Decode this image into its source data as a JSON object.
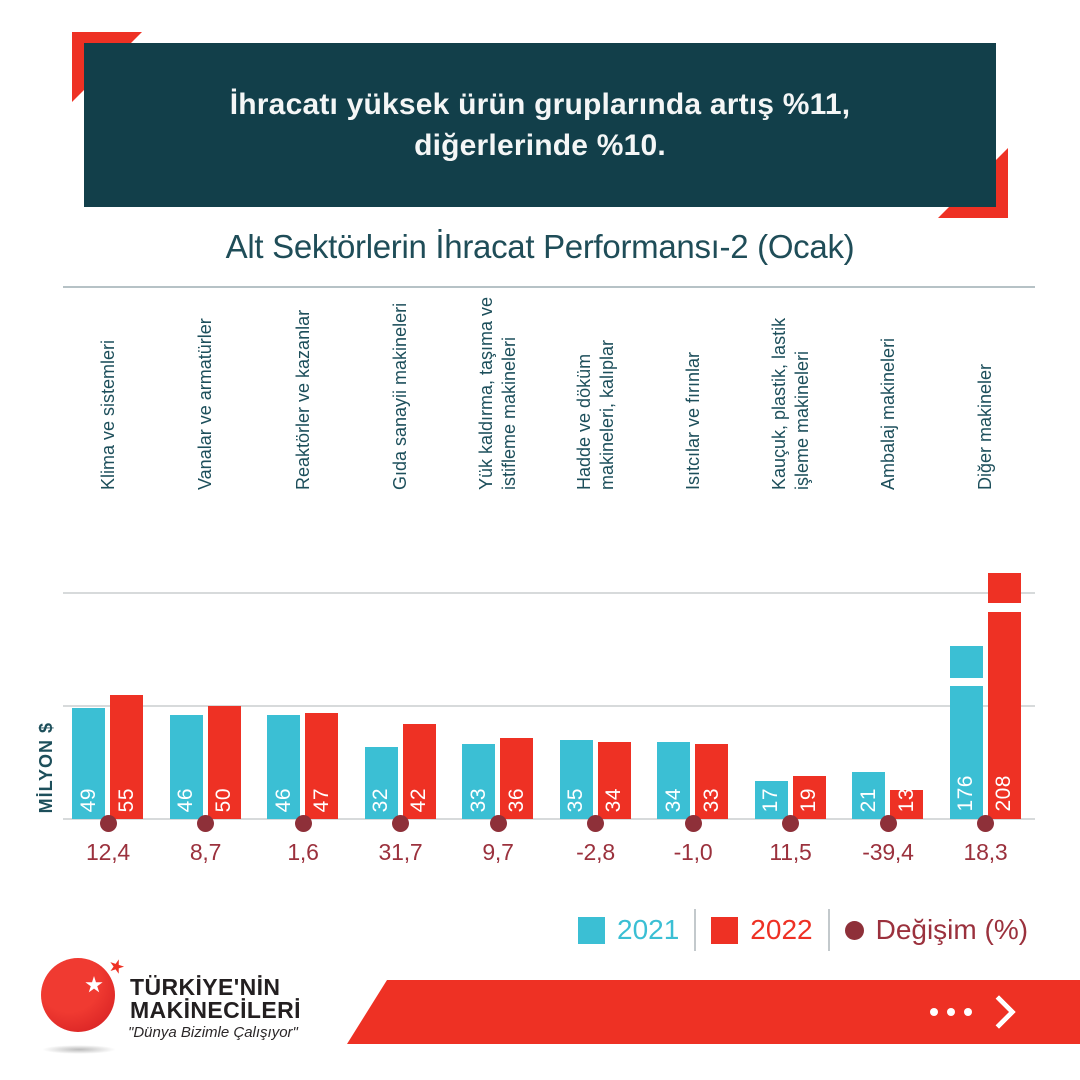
{
  "banner": {
    "line1": "İhracatı yüksek ürün gruplarında artış %11,",
    "line2": "diğerlerinde %10."
  },
  "title": "Alt Sektörlerin İhracat Performansı-2 (Ocak)",
  "chart_data": {
    "type": "bar",
    "title": "Alt Sektörlerin İhracat Performansı-2 (Ocak)",
    "ylabel": "MİLYON $",
    "categories": [
      "Klima ve sistemleri",
      "Vanalar ve armatürler",
      "Reaktörler ve kazanlar",
      "Gıda sanayii makineleri",
      "Yük kaldırma, taşıma ve\nistifleme makineleri",
      "Hadde ve döküm\nmakineleri, kalıplar",
      "Isıtcılar ve fırınlar",
      "Kauçuk, plastik, lastik\nişleme makineleri",
      "Ambalaj makineleri",
      "Diğer makineler"
    ],
    "series": [
      {
        "name": "2021",
        "color": "#3bbfd4",
        "values": [
          49,
          46,
          46,
          32,
          33,
          35,
          34,
          17,
          21,
          176
        ]
      },
      {
        "name": "2022",
        "color": "#ee3124",
        "values": [
          55,
          50,
          47,
          42,
          36,
          34,
          33,
          19,
          13,
          208
        ]
      }
    ],
    "change_series": {
      "name": "Değişim (%)",
      "color": "#8e3039",
      "text_color": "#9b313d",
      "values": [
        "12,4",
        "8,7",
        "1,6",
        "31,7",
        "9,7",
        "-2,8",
        "-1,0",
        "11,5",
        "-39,4",
        "18,3"
      ]
    },
    "gridline_values": [
      0,
      50,
      100
    ],
    "axis_break": {
      "category": "Diğer makineler",
      "note": "tallest bars truncated with white break gap"
    },
    "legend_position": "bottom-right",
    "grid": true
  },
  "legend": {
    "items": [
      "2021",
      "2022",
      "Değişim (%)"
    ]
  },
  "logo": {
    "name_line1": "TÜRKİYE'NİN",
    "name_line2": "MAKİNECİLERİ",
    "tagline": "\"Dünya Bizimle Çalışıyor\"",
    "brand_color": "#ee3124"
  },
  "footer": {
    "more_icon": "ellipsis-dots",
    "next_icon": "chevron-right"
  },
  "colors": {
    "banner_bg": "#123f4a",
    "accent_red": "#ee3124",
    "teal": "#3bbfd4",
    "maroon": "#8e3039",
    "text_teal": "#1f4d58"
  }
}
